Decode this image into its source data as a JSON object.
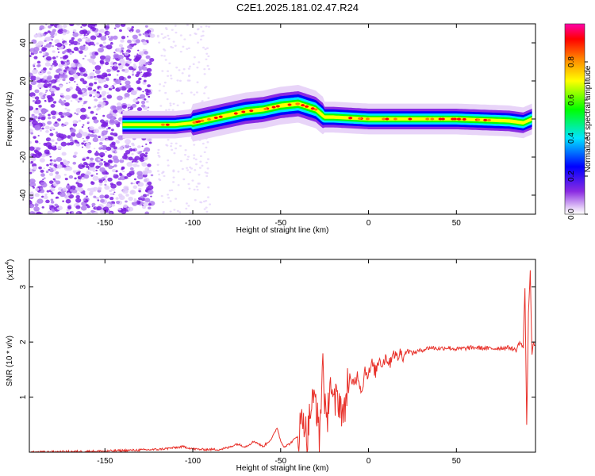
{
  "title": "C2E1.2025.181.02.47.R24",
  "colors": {
    "snr_line": "#e8312a",
    "axis": "#000000"
  },
  "chart_data": [
    {
      "type": "heatmap",
      "xlabel": "Height of straight line (km)",
      "ylabel": "Frequency (Hz)",
      "xlim": [
        -193,
        95
      ],
      "ylim": [
        -50,
        50
      ],
      "x_ticks": [
        -150,
        -100,
        -50,
        0,
        50
      ],
      "y_ticks": [
        -40,
        -20,
        0,
        20,
        40
      ],
      "colorbar": {
        "label": "Normalized spectral amplitude",
        "range": [
          0,
          1
        ],
        "ticks": [
          "0.0",
          "0.2",
          "0.4",
          "0.6",
          "0.8"
        ],
        "tick_values": [
          0.0,
          0.2,
          0.4,
          0.6,
          0.8
        ],
        "colormap": [
          "#ffffff",
          "#e8d4f8",
          "#8a2be2",
          "#0000ff",
          "#00e5ff",
          "#00ff00",
          "#ffff00",
          "#ff8000",
          "#ff0000",
          "#ff00aa"
        ]
      },
      "ridge": [
        {
          "x": -140,
          "f": -3
        },
        {
          "x": -125,
          "f": -3
        },
        {
          "x": -110,
          "f": -3
        },
        {
          "x": -100,
          "f": -2
        },
        {
          "x": -90,
          "f": 0
        },
        {
          "x": -80,
          "f": 2
        },
        {
          "x": -70,
          "f": 4
        },
        {
          "x": -60,
          "f": 5
        },
        {
          "x": -50,
          "f": 7
        },
        {
          "x": -40,
          "f": 8
        },
        {
          "x": -30,
          "f": 5
        },
        {
          "x": -25,
          "f": 1
        },
        {
          "x": -20,
          "f": 1
        },
        {
          "x": 0,
          "f": 0
        },
        {
          "x": 20,
          "f": 0
        },
        {
          "x": 50,
          "f": 0
        },
        {
          "x": 80,
          "f": -1
        },
        {
          "x": 88,
          "f": -2
        },
        {
          "x": 93,
          "f": 0
        }
      ]
    },
    {
      "type": "line",
      "xlabel": "Height of straight line (km)",
      "ylabel": "SNR (10 * v/v)",
      "y_multiplier": "(x10",
      "y_multiplier_exp": "4",
      "y_multiplier_close": ")",
      "xlim": [
        -193,
        95
      ],
      "ylim": [
        0,
        3.5
      ],
      "x_ticks": [
        -150,
        -100,
        -50,
        0,
        50
      ],
      "y_ticks": [
        1,
        2,
        3
      ],
      "series": [
        {
          "x": [
            -193,
            -150,
            -120,
            -105,
            -100,
            -95,
            -85,
            -80,
            -75,
            -70,
            -65,
            -60,
            -55,
            -52,
            -50,
            -48,
            -45,
            -40,
            -37,
            -35,
            -33,
            -30,
            -28,
            -26,
            -24,
            -22,
            -20,
            -18,
            -16,
            -14,
            -12,
            -10,
            -8,
            -6,
            -4,
            -2,
            0,
            2,
            4,
            6,
            8,
            10,
            12,
            14,
            16,
            18,
            20,
            22,
            25,
            30,
            35,
            40,
            45,
            50,
            60,
            70,
            80,
            84,
            86,
            88,
            89,
            90,
            91,
            92,
            93,
            94,
            95
          ],
          "y": [
            0.0,
            0.02,
            0.05,
            0.1,
            0.06,
            0.05,
            0.05,
            0.08,
            0.15,
            0.1,
            0.2,
            0.1,
            0.25,
            0.45,
            0.2,
            0.1,
            0.15,
            0.3,
            0.7,
            0.2,
            0.8,
            1.0,
            0.2,
            1.7,
            0.3,
            1.4,
            0.8,
            1.0,
            0.9,
            0.6,
            1.3,
            1.2,
            1.3,
            1.4,
            1.1,
            1.5,
            1.4,
            1.6,
            1.45,
            1.7,
            1.6,
            1.75,
            1.6,
            1.85,
            1.7,
            1.8,
            1.75,
            1.85,
            1.8,
            1.85,
            1.9,
            1.88,
            1.9,
            1.87,
            1.9,
            1.88,
            1.9,
            1.85,
            2.0,
            1.9,
            3.0,
            0.5,
            2.5,
            3.3,
            1.8,
            2.0,
            1.85
          ]
        }
      ]
    }
  ]
}
